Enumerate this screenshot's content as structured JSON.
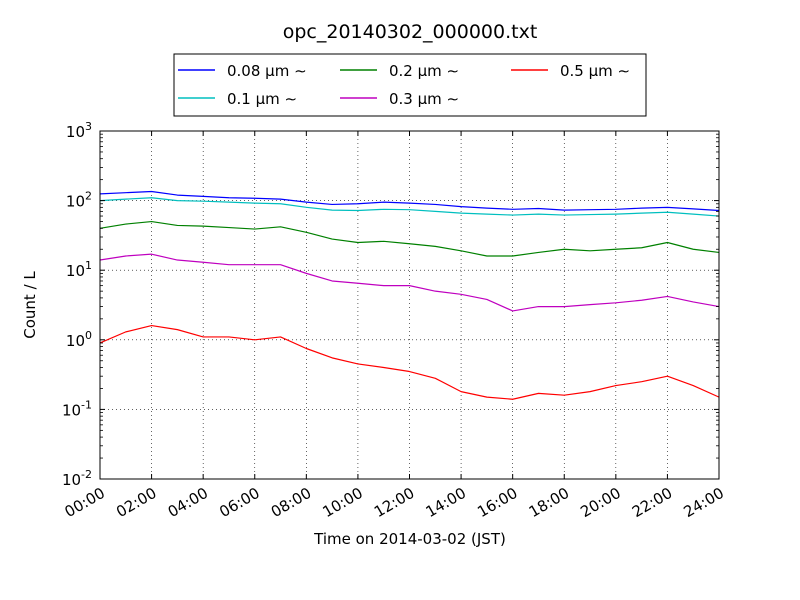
{
  "chart_data": {
    "type": "line",
    "title": "opc_20140302_000000.txt",
    "xlabel": "Time on 2014-03-02 (JST)",
    "ylabel": "Count / L",
    "y_scale": "log",
    "ylim": [
      0.01,
      1000
    ],
    "xlim": [
      0,
      24
    ],
    "grid": true,
    "legend_position": "top, outside plot (2 rows x 3 columns)",
    "x_tick_labels": [
      "00:00",
      "02:00",
      "04:00",
      "06:00",
      "08:00",
      "10:00",
      "12:00",
      "14:00",
      "16:00",
      "18:00",
      "20:00",
      "22:00",
      "24:00"
    ],
    "y_tick_labels": [
      {
        "base": "10",
        "exp": "-2"
      },
      {
        "base": "10",
        "exp": "-1"
      },
      {
        "base": "10",
        "exp": "0"
      },
      {
        "base": "10",
        "exp": "1"
      },
      {
        "base": "10",
        "exp": "2"
      },
      {
        "base": "10",
        "exp": "3"
      }
    ],
    "x_hours": [
      0,
      1,
      2,
      3,
      4,
      5,
      6,
      7,
      8,
      9,
      10,
      11,
      12,
      13,
      14,
      15,
      16,
      17,
      18,
      19,
      20,
      21,
      22,
      23,
      24
    ],
    "series": [
      {
        "name": "0.08 μm ∼",
        "color": "#0000ff",
        "values": [
          125,
          130,
          135,
          120,
          115,
          110,
          108,
          105,
          95,
          88,
          90,
          95,
          92,
          88,
          82,
          78,
          75,
          77,
          73,
          74,
          75,
          78,
          80,
          76,
          72
        ]
      },
      {
        "name": "0.1 μm ∼",
        "color": "#00bfbf",
        "values": [
          100,
          105,
          110,
          100,
          98,
          95,
          92,
          90,
          80,
          73,
          72,
          75,
          74,
          70,
          66,
          64,
          62,
          64,
          62,
          63,
          64,
          66,
          68,
          64,
          60
        ]
      },
      {
        "name": "0.2 μm ∼",
        "color": "#008000",
        "values": [
          40,
          46,
          50,
          44,
          43,
          41,
          39,
          42,
          35,
          28,
          25,
          26,
          24,
          22,
          19,
          16,
          16,
          18,
          20,
          19,
          20,
          21,
          25,
          20,
          18
        ]
      },
      {
        "name": "0.3 μm ∼",
        "color": "#bf00bf",
        "values": [
          14,
          16,
          17,
          14,
          13,
          12,
          12,
          12,
          9,
          7,
          6.5,
          6,
          6,
          5,
          4.5,
          3.8,
          2.6,
          3,
          3,
          3.2,
          3.4,
          3.7,
          4.2,
          3.5,
          3
        ]
      },
      {
        "name": "0.5 μm ∼",
        "color": "#ff0000",
        "values": [
          0.9,
          1.3,
          1.6,
          1.4,
          1.1,
          1.1,
          1.0,
          1.1,
          0.75,
          0.55,
          0.45,
          0.4,
          0.35,
          0.28,
          0.18,
          0.15,
          0.14,
          0.17,
          0.16,
          0.18,
          0.22,
          0.25,
          0.3,
          0.22,
          0.15
        ]
      }
    ]
  }
}
